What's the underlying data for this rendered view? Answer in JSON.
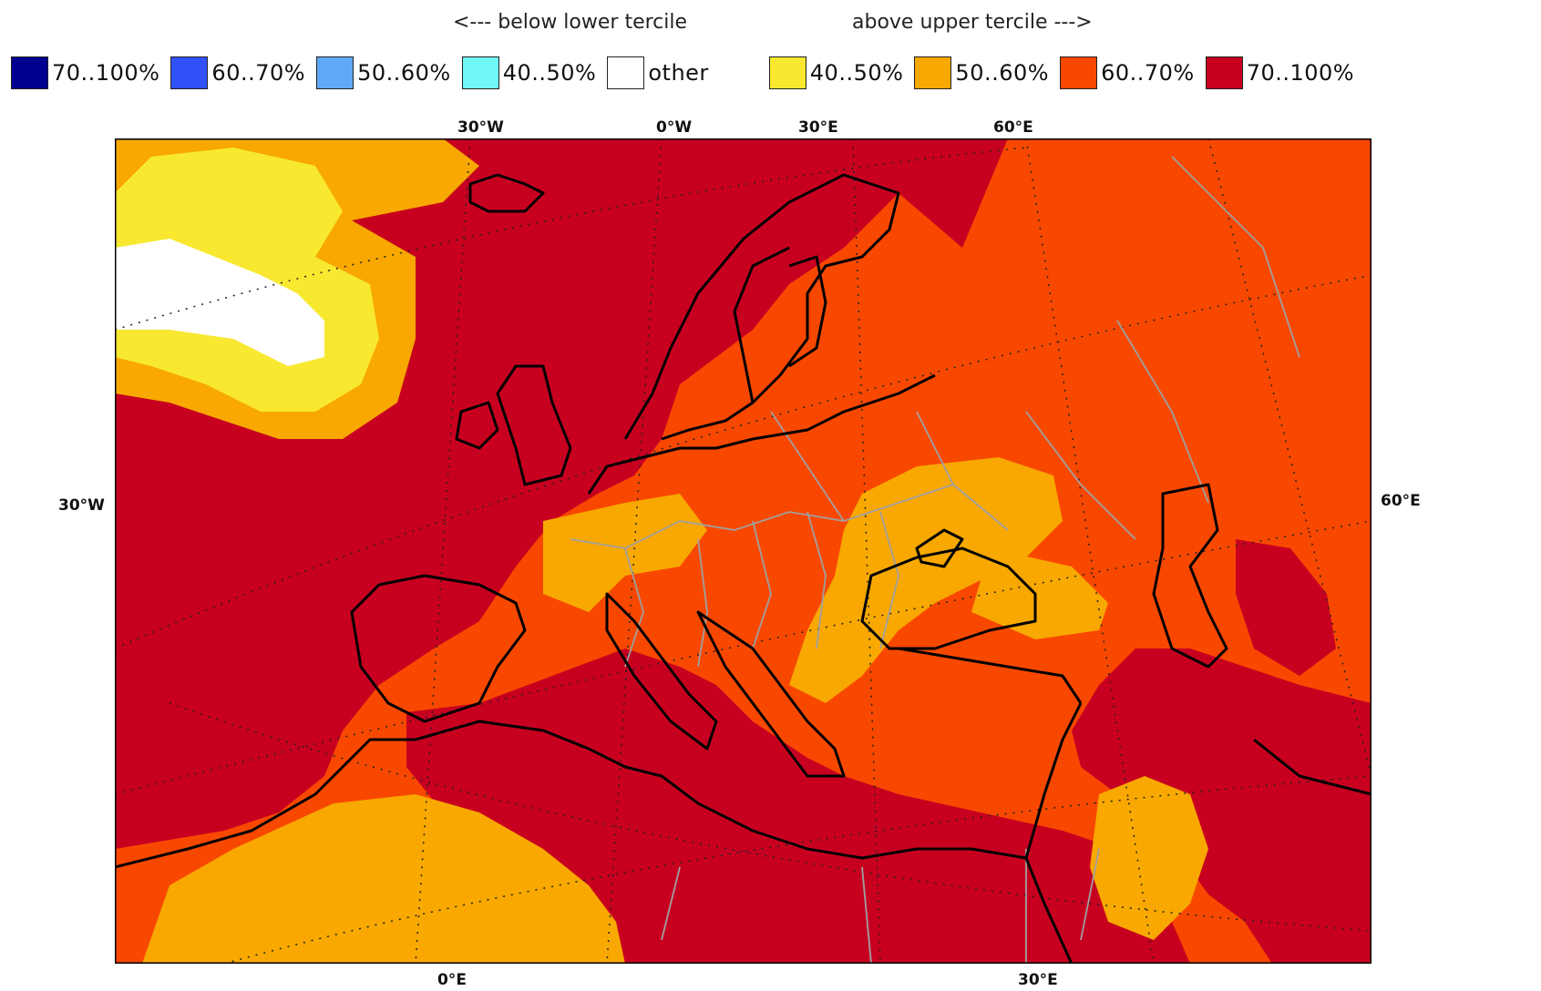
{
  "legend": {
    "below_header": "<--- below lower tercile",
    "above_header": "above upper tercile --->",
    "below": [
      {
        "label": "70..100%",
        "color": "#000090"
      },
      {
        "label": "60..70%",
        "color": "#3050f8"
      },
      {
        "label": "50..60%",
        "color": "#60a8f8"
      },
      {
        "label": "40..50%",
        "color": "#70f8f8"
      }
    ],
    "other": {
      "label": "other",
      "color": "#ffffff"
    },
    "above": [
      {
        "label": "40..50%",
        "color": "#f8e830"
      },
      {
        "label": "50..60%",
        "color": "#f8a800"
      },
      {
        "label": "60..70%",
        "color": "#f84800"
      },
      {
        "label": "70..100%",
        "color": "#c80020"
      }
    ]
  },
  "map": {
    "top_labels": [
      "30°W",
      "0°W",
      "30°E",
      "60°E"
    ],
    "bottom_labels": [
      "0°E",
      "30°E"
    ],
    "left_label": "30°W",
    "right_label": "60°E"
  }
}
